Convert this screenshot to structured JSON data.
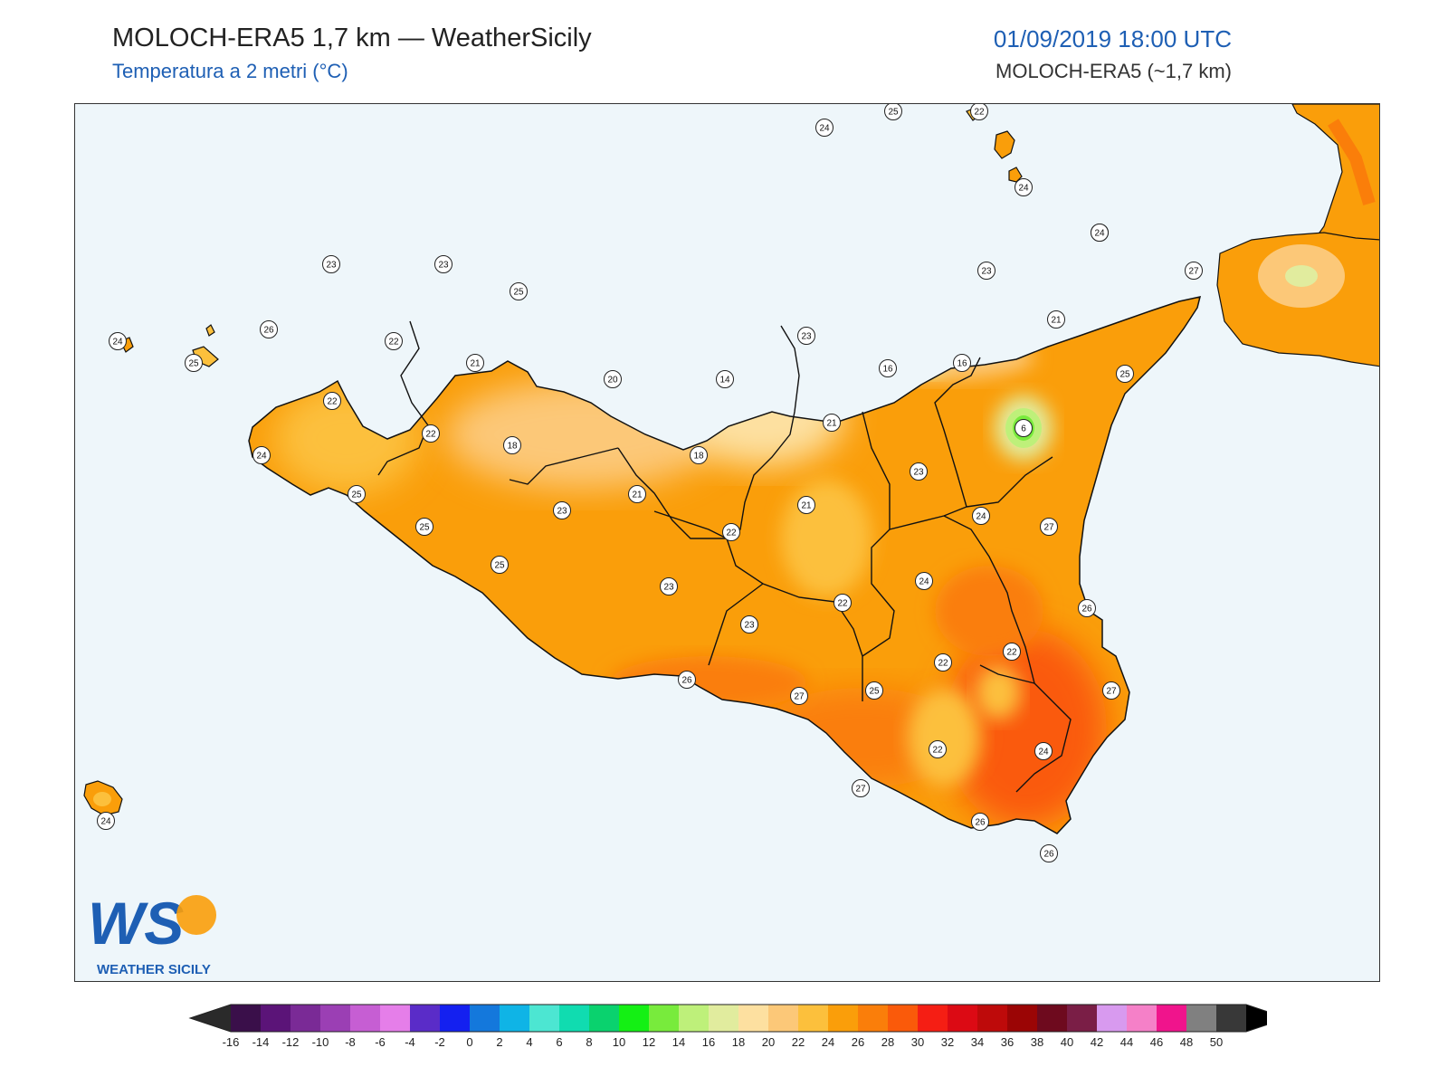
{
  "header": {
    "title": "MOLOCH-ERA5 1,7 km — WeatherSicily",
    "subtitle": "Temperatura a 2 metri (°C)",
    "datetime": "01/09/2019 18:00 UTC",
    "model": "MOLOCH-ERA5 (~1,7 km)"
  },
  "logo": {
    "letters": "WS",
    "text": "WEATHER SICILY"
  },
  "map": {
    "sea_color": "#eef6fa",
    "station_values": [
      {
        "id": "s1",
        "value": "23"
      },
      {
        "id": "s2",
        "value": "23"
      },
      {
        "id": "s3",
        "value": "25"
      },
      {
        "id": "s4",
        "value": "26"
      },
      {
        "id": "s5",
        "value": "22"
      },
      {
        "id": "s6",
        "value": "21"
      },
      {
        "id": "s7",
        "value": "20"
      },
      {
        "id": "s8",
        "value": "14"
      },
      {
        "id": "s9",
        "value": "23"
      },
      {
        "id": "s10",
        "value": "16"
      },
      {
        "id": "s11",
        "value": "16"
      },
      {
        "id": "s12",
        "value": "21"
      },
      {
        "id": "s13",
        "value": "23"
      },
      {
        "id": "s14",
        "value": "27"
      },
      {
        "id": "s15",
        "value": "24"
      },
      {
        "id": "s16",
        "value": "25"
      },
      {
        "id": "s17",
        "value": "24"
      },
      {
        "id": "s18",
        "value": "25"
      },
      {
        "id": "s19",
        "value": "22"
      },
      {
        "id": "s20",
        "value": "22"
      },
      {
        "id": "s21",
        "value": "18"
      },
      {
        "id": "s22",
        "value": "18"
      },
      {
        "id": "s23",
        "value": "21"
      },
      {
        "id": "s24",
        "value": "6"
      },
      {
        "id": "s25",
        "value": "24"
      },
      {
        "id": "s26",
        "value": "25"
      },
      {
        "id": "s27",
        "value": "25"
      },
      {
        "id": "s28",
        "value": "23"
      },
      {
        "id": "s29",
        "value": "21"
      },
      {
        "id": "s30",
        "value": "21"
      },
      {
        "id": "s31",
        "value": "23"
      },
      {
        "id": "s32",
        "value": "24"
      },
      {
        "id": "s33",
        "value": "27"
      },
      {
        "id": "s34",
        "value": "22"
      },
      {
        "id": "s35",
        "value": "25"
      },
      {
        "id": "s36",
        "value": "23"
      },
      {
        "id": "s37",
        "value": "24"
      },
      {
        "id": "s38",
        "value": "22"
      },
      {
        "id": "s39",
        "value": "26"
      },
      {
        "id": "s40",
        "value": "23"
      },
      {
        "id": "s41",
        "value": "22"
      },
      {
        "id": "s42",
        "value": "22"
      },
      {
        "id": "s43",
        "value": "26"
      },
      {
        "id": "s44",
        "value": "27"
      },
      {
        "id": "s45",
        "value": "25"
      },
      {
        "id": "s46",
        "value": "27"
      },
      {
        "id": "s47",
        "value": "22"
      },
      {
        "id": "s48",
        "value": "24"
      },
      {
        "id": "s49",
        "value": "27"
      },
      {
        "id": "s50",
        "value": "26"
      },
      {
        "id": "s51",
        "value": "26"
      },
      {
        "id": "s52",
        "value": "24"
      },
      {
        "id": "s53",
        "value": "24"
      },
      {
        "id": "s54",
        "value": "25"
      },
      {
        "id": "s55",
        "value": "22"
      },
      {
        "id": "s56",
        "value": "24"
      },
      {
        "id": "s57",
        "value": "24"
      }
    ]
  },
  "colorbar": {
    "ticks": [
      "-16",
      "-14",
      "-12",
      "-10",
      "-8",
      "-6",
      "-4",
      "-2",
      "0",
      "2",
      "4",
      "6",
      "8",
      "10",
      "12",
      "14",
      "16",
      "18",
      "20",
      "22",
      "24",
      "26",
      "28",
      "30",
      "32",
      "34",
      "36",
      "38",
      "40",
      "42",
      "44",
      "46",
      "48",
      "50"
    ],
    "colors": [
      "#3a0f4a",
      "#5b1478",
      "#7a2a96",
      "#9b3fb4",
      "#c65ed3",
      "#e57ee9",
      "#5a2cc8",
      "#1420f0",
      "#1478dc",
      "#0fb4e6",
      "#4ce6d2",
      "#10dcb0",
      "#0ad26e",
      "#14f014",
      "#78eb3c",
      "#bef07a",
      "#e1ec9e",
      "#fde0a0",
      "#fcc878",
      "#fcc03c",
      "#fa9e0a",
      "#fa7e0a",
      "#fa5a0a",
      "#f51e14",
      "#dc0a14",
      "#be0a0a",
      "#9b0505",
      "#6e0a1e",
      "#7a1e46",
      "#d89aef",
      "#f580c8",
      "#f0148c",
      "#808080",
      "#383838"
    ],
    "under_color": "#2a2a2a",
    "over_color": "#000000"
  }
}
